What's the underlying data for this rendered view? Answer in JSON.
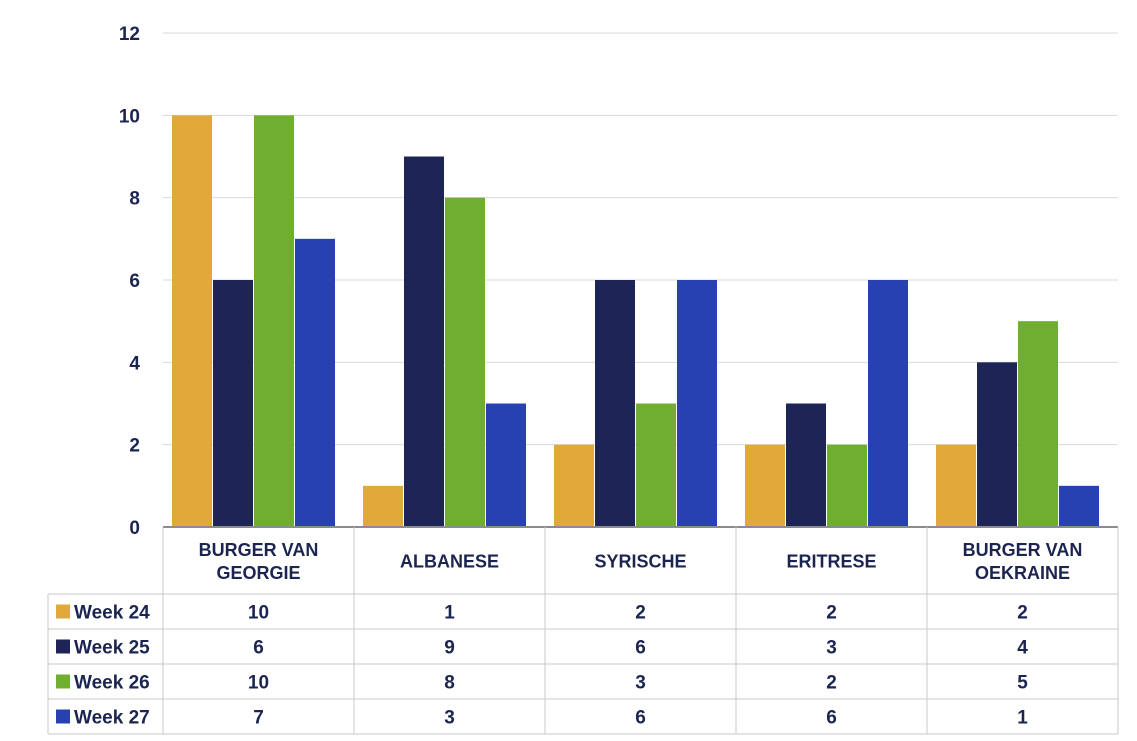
{
  "chart_data": {
    "type": "bar",
    "categories": [
      [
        "BURGER VAN",
        "GEORGIE"
      ],
      [
        "ALBANESE"
      ],
      [
        "SYRISCHE"
      ],
      [
        "ERITRESE"
      ],
      [
        "BURGER VAN",
        "OEKRAINE"
      ]
    ],
    "series": [
      {
        "name": "Week 24",
        "color": "#e0a93a",
        "values": [
          10,
          1,
          2,
          2,
          2
        ]
      },
      {
        "name": "Week 25",
        "color": "#1c2555",
        "values": [
          6,
          9,
          6,
          3,
          4
        ]
      },
      {
        "name": "Week 26",
        "color": "#6fae2f",
        "values": [
          10,
          8,
          3,
          2,
          5
        ]
      },
      {
        "name": "Week 27",
        "color": "#2741b3",
        "values": [
          7,
          3,
          6,
          6,
          1
        ]
      }
    ],
    "y_ticks": [
      0,
      2,
      4,
      6,
      8,
      10,
      12
    ],
    "ylim": [
      0,
      12
    ],
    "grid": true,
    "legend": "data-table-left",
    "data_table": true,
    "title": "",
    "xlabel": "",
    "ylabel": ""
  }
}
